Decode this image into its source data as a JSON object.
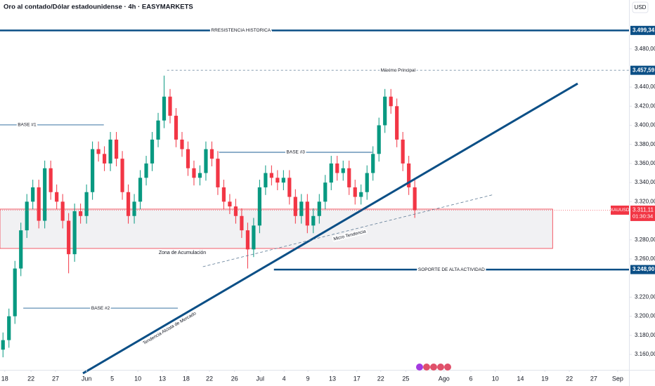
{
  "title": "Oro al contado/Dólar estadounidense · 4h · EASYMARKETS",
  "currency": "USD",
  "chart_data": {
    "type": "candlestick",
    "open": [
      3165,
      3175,
      3200,
      3250,
      3290,
      3320,
      3335,
      3300,
      3355,
      3330,
      3320,
      3300,
      3265,
      3310,
      3305,
      3330,
      3375,
      3370,
      3360,
      3385,
      3365,
      3330,
      3305,
      3320,
      3345,
      3360,
      3385,
      3405,
      3430,
      3410,
      3385,
      3375,
      3355,
      3345,
      3350,
      3375,
      3365,
      3335,
      3320,
      3315,
      3305,
      3290,
      3270,
      3295,
      3335,
      3350,
      3345,
      3340,
      3345,
      3325,
      3305,
      3320,
      3295,
      3305,
      3320,
      3340,
      3360,
      3350,
      3355,
      3335,
      3325,
      3330,
      3350,
      3370,
      3400,
      3430,
      3420,
      3385,
      3360,
      3335
    ],
    "high": [
      3183,
      3208,
      3258,
      3298,
      3328,
      3343,
      3343,
      3363,
      3363,
      3338,
      3328,
      3308,
      3318,
      3318,
      3338,
      3383,
      3383,
      3378,
      3393,
      3393,
      3373,
      3338,
      3328,
      3353,
      3368,
      3393,
      3413,
      3452,
      3438,
      3418,
      3393,
      3383,
      3363,
      3358,
      3383,
      3383,
      3373,
      3343,
      3328,
      3323,
      3313,
      3298,
      3303,
      3343,
      3358,
      3358,
      3353,
      3353,
      3353,
      3333,
      3328,
      3328,
      3313,
      3328,
      3348,
      3368,
      3368,
      3363,
      3363,
      3343,
      3338,
      3358,
      3378,
      3408,
      3438,
      3438,
      3428,
      3393,
      3368,
      3343
    ],
    "low": [
      3157,
      3167,
      3192,
      3242,
      3282,
      3312,
      3292,
      3292,
      3322,
      3312,
      3292,
      3245,
      3257,
      3297,
      3297,
      3322,
      3362,
      3352,
      3352,
      3357,
      3322,
      3297,
      3297,
      3312,
      3337,
      3352,
      3377,
      3397,
      3402,
      3377,
      3367,
      3347,
      3337,
      3337,
      3342,
      3357,
      3327,
      3312,
      3307,
      3297,
      3282,
      3250,
      3262,
      3287,
      3327,
      3337,
      3332,
      3332,
      3317,
      3297,
      3297,
      3287,
      3287,
      3297,
      3312,
      3332,
      3342,
      3342,
      3327,
      3317,
      3317,
      3322,
      3342,
      3362,
      3392,
      3412,
      3377,
      3352,
      3327,
      3303
    ],
    "close": [
      3175,
      3200,
      3250,
      3290,
      3320,
      3335,
      3300,
      3355,
      3330,
      3320,
      3300,
      3265,
      3310,
      3305,
      3330,
      3375,
      3370,
      3360,
      3385,
      3365,
      3330,
      3305,
      3320,
      3345,
      3360,
      3385,
      3405,
      3430,
      3410,
      3385,
      3375,
      3355,
      3345,
      3350,
      3375,
      3365,
      3335,
      3320,
      3315,
      3305,
      3290,
      3270,
      3295,
      3335,
      3350,
      3345,
      3340,
      3345,
      3325,
      3305,
      3320,
      3295,
      3305,
      3320,
      3340,
      3360,
      3350,
      3355,
      3335,
      3325,
      3330,
      3350,
      3370,
      3400,
      3430,
      3420,
      3385,
      3360,
      3335,
      3311.11
    ],
    "up_color": "#089981",
    "down_color": "#f23645",
    "grid": false,
    "xlim": [
      -0.5,
      104.9
    ],
    "xticks": [
      {
        "value": 0.3,
        "label": "18"
      },
      {
        "value": 4.7,
        "label": "22"
      },
      {
        "value": 8.8,
        "label": "27"
      },
      {
        "value": 14.0,
        "label": "Jun"
      },
      {
        "value": 18.3,
        "label": "5"
      },
      {
        "value": 22.6,
        "label": "10"
      },
      {
        "value": 26.7,
        "label": "13"
      },
      {
        "value": 30.7,
        "label": "18"
      },
      {
        "value": 34.6,
        "label": "22"
      },
      {
        "value": 38.8,
        "label": "26"
      },
      {
        "value": 43.1,
        "label": "Jul"
      },
      {
        "value": 47.1,
        "label": "4"
      },
      {
        "value": 51.1,
        "label": "9"
      },
      {
        "value": 55.2,
        "label": "13"
      },
      {
        "value": 59.3,
        "label": "17"
      },
      {
        "value": 63.3,
        "label": "22"
      },
      {
        "value": 67.5,
        "label": "25"
      },
      {
        "value": 73.9,
        "label": "Ago"
      },
      {
        "value": 78.4,
        "label": "6"
      },
      {
        "value": 82.5,
        "label": "10"
      },
      {
        "value": 86.7,
        "label": "14"
      },
      {
        "value": 90.8,
        "label": "19"
      },
      {
        "value": 94.9,
        "label": "22"
      },
      {
        "value": 99.0,
        "label": "27"
      },
      {
        "value": 103.0,
        "label": "Sep"
      }
    ],
    "ylim": [
      3149,
      3531.2
    ],
    "yticks": [
      {
        "value": 3480,
        "label": "3.480,00"
      },
      {
        "value": 3440,
        "label": "3.440,00"
      },
      {
        "value": 3420,
        "label": "3.420,00"
      },
      {
        "value": 3400,
        "label": "3.400,00"
      },
      {
        "value": 3380,
        "label": "3.380,00"
      },
      {
        "value": 3360,
        "label": "3.360,00"
      },
      {
        "value": 3340,
        "label": "3.340,00"
      },
      {
        "value": 3320,
        "label": "3.320,00"
      },
      {
        "value": 3280,
        "label": "3.280,00"
      },
      {
        "value": 3260,
        "label": "3.260,00"
      },
      {
        "value": 3220,
        "label": "3.220,00"
      },
      {
        "value": 3200,
        "label": "3.200,00"
      },
      {
        "value": 3180,
        "label": "3.180,00"
      },
      {
        "value": 3160,
        "label": "3.160,00"
      }
    ],
    "last_price": {
      "value": 3311.11,
      "label": "3.311,11",
      "symbol": "XAUUSD",
      "countdown": "01:30:34",
      "color": "#f23645"
    },
    "level_color": "#0b4f86",
    "levels": [
      {
        "value": 3499.34,
        "label": "3.499,34",
        "text": "RRESISTENCIA HISTORICA",
        "x_start": -0.5,
        "style": "solid"
      },
      {
        "value": 3457.59,
        "label": "3.457,59",
        "text": "Máximo Principal",
        "x_start": 27.5,
        "style": "dashed"
      },
      {
        "value": 3248.9,
        "label": "3.248,90",
        "text": "SOPORTE DE ALTA ACTIVIDAD",
        "x_start": 45.4,
        "style": "solid"
      }
    ],
    "segments": [
      {
        "text": "BASE #1",
        "x": [
          -0.5,
          16.9
        ],
        "y": [
          3400.4,
          3400.4
        ],
        "style": "thin"
      },
      {
        "text": "BASE #2",
        "x": [
          3.4,
          29.3
        ],
        "y": [
          3208.5,
          3208.5
        ],
        "style": "thin"
      },
      {
        "text": "BASE #3",
        "x": [
          36.2,
          61.9
        ],
        "y": [
          3371.7,
          3371.7
        ],
        "style": "thin"
      },
      {
        "text": "Tendencia Alcista de Mercado",
        "x": [
          13.4,
          96.3
        ],
        "y": [
          3140.2,
          3443.7
        ],
        "style": "thick"
      },
      {
        "text": "Micro Tendencia",
        "x": [
          33.5,
          82.3
        ],
        "y": [
          3251.9,
          3327.6
        ],
        "style": "dashed"
      }
    ],
    "zone": {
      "text": "Zona de Acumulación",
      "x": [
        -0.5,
        92.1
      ],
      "y": [
        3271.0,
        3312.2
      ]
    }
  }
}
